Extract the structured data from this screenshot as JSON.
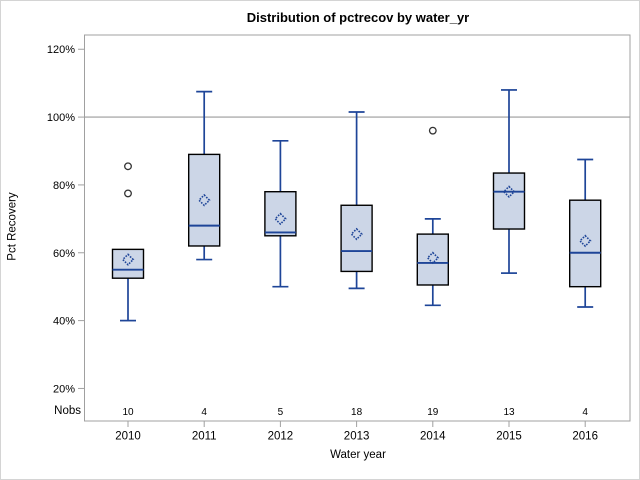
{
  "title": "Distribution of pctrecov by water_yr",
  "axes": {
    "y_label": "Pct Recovery",
    "x_label": "Water year",
    "nobs_label": "Nobs"
  },
  "colors": {
    "box_fill": "#ccd6e7",
    "box_border": "#000000",
    "line_blue": "#1e4598",
    "reference_line": "#9b9b9b",
    "frame": "#a0a0a0",
    "outer_border": "#d4d4d4",
    "outlier": "#333333",
    "text": "#000000"
  },
  "chart_data": {
    "type": "boxplot",
    "title": "Distribution of pctrecov by water_yr",
    "xlabel": "Water year",
    "ylabel": "Pct Recovery",
    "categories": [
      "2010",
      "2011",
      "2012",
      "2013",
      "2014",
      "2015",
      "2016"
    ],
    "nobs": [
      10,
      4,
      5,
      18,
      19,
      13,
      4
    ],
    "y_ticks": [
      20,
      40,
      60,
      80,
      100,
      120
    ],
    "y_tick_suffix": "%",
    "ylim": [
      10.4,
      124.2
    ],
    "reference_line": 100,
    "grid": "off",
    "series": [
      {
        "category": "2010",
        "low": 40,
        "q1": 52.5,
        "median": 55,
        "q3": 61,
        "high": 61,
        "mean": 58,
        "outliers": [
          85.5,
          77.5
        ]
      },
      {
        "category": "2011",
        "low": 58,
        "q1": 62,
        "median": 68,
        "q3": 89,
        "high": 107.5,
        "mean": 75.5,
        "outliers": []
      },
      {
        "category": "2012",
        "low": 50,
        "q1": 65,
        "median": 66,
        "q3": 78,
        "high": 93,
        "mean": 70,
        "outliers": []
      },
      {
        "category": "2013",
        "low": 49.5,
        "q1": 54.5,
        "median": 60.5,
        "q3": 74,
        "high": 101.5,
        "mean": 65.5,
        "outliers": []
      },
      {
        "category": "2014",
        "low": 44.5,
        "q1": 50.5,
        "median": 57,
        "q3": 65.5,
        "high": 70,
        "mean": 58.5,
        "outliers": [
          96
        ]
      },
      {
        "category": "2015",
        "low": 54,
        "q1": 67,
        "median": 78,
        "q3": 83.5,
        "high": 108,
        "mean": 78,
        "outliers": []
      },
      {
        "category": "2016",
        "low": 44,
        "q1": 50,
        "median": 60,
        "q3": 75.5,
        "high": 87.5,
        "mean": 63.5,
        "outliers": []
      }
    ]
  }
}
